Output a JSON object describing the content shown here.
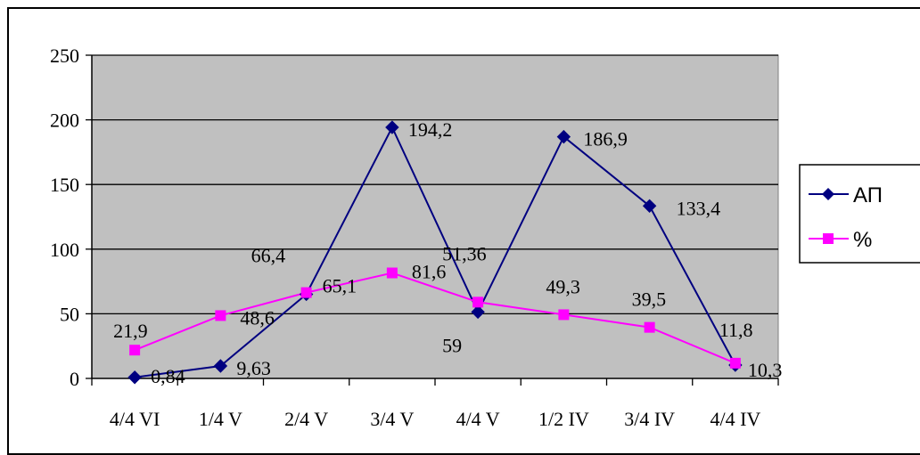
{
  "chart_data": {
    "type": "line",
    "categories": [
      "4/4 VI",
      "1/4 V",
      "2/4 V",
      "3/4 V",
      "4/4 V",
      "1/2 IV",
      "3/4 IV",
      "4/4 IV"
    ],
    "ylim": [
      0,
      250
    ],
    "yticks": [
      0,
      50,
      100,
      150,
      200,
      250
    ],
    "grid": true,
    "legend": "right",
    "plot_background": "#c0c0c0",
    "series": [
      {
        "name": "АП",
        "color": "#000080",
        "marker": "diamond",
        "values": [
          0.84,
          9.63,
          65.1,
          194.2,
          51.36,
          186.9,
          133.4,
          10.3
        ],
        "labels": [
          "0,84",
          "9,63",
          "65,1",
          "194,2",
          "51,36",
          "186,9",
          "133,4",
          "10,3"
        ]
      },
      {
        "name": "%",
        "color": "#ff00ff",
        "marker": "square",
        "values": [
          21.9,
          48.6,
          66.4,
          81.6,
          59,
          49.3,
          39.5,
          11.8
        ],
        "labels": [
          "21,9",
          "48,6",
          "66,4",
          "81,6",
          "59",
          "49,3",
          "39,5",
          "11,8"
        ]
      }
    ]
  }
}
